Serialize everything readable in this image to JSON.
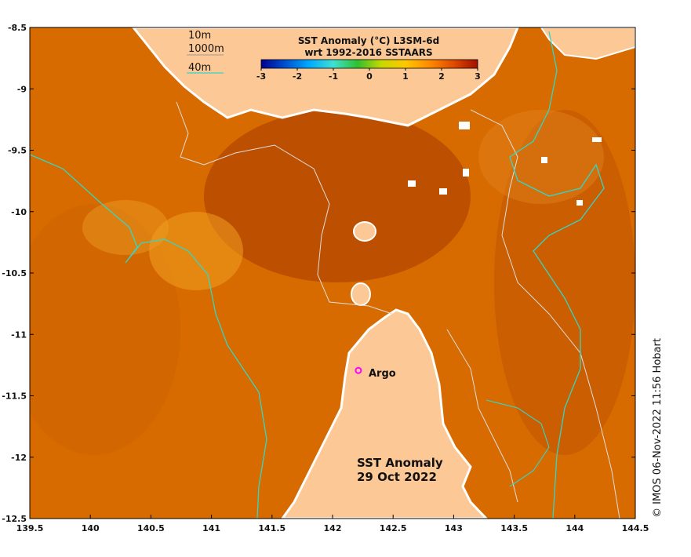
{
  "map": {
    "title_line1": "SST Anomaly (°C) L3SM-6d",
    "title_line2": "wrt 1992-2016 SSTAARS",
    "annotation_line1": "SST Anomaly",
    "annotation_line2": "29 Oct 2022",
    "credit": "© IMOS 06-Nov-2022 11:56 Hobart",
    "argo_label": "Argo",
    "argo_marker_color": "#ff00ff",
    "land_color": "#fcc996",
    "anomaly_color": "#d86b00",
    "contour_40m_color": "#33d6c6",
    "contour_10m_color": "#dddddd"
  },
  "legend": {
    "items": [
      {
        "label": "10m",
        "color": "#dddddd"
      },
      {
        "label": "1000m",
        "color": "#999999"
      },
      {
        "label": "40m",
        "color": "#33d6c6"
      }
    ]
  },
  "colorbar": {
    "ticks": [
      "-3",
      "-2",
      "-1",
      "0",
      "1",
      "2",
      "3"
    ],
    "min": -3,
    "max": 3,
    "colors": [
      "#00008c",
      "#0050d0",
      "#00aaff",
      "#40e0d0",
      "#30c030",
      "#c8d800",
      "#ffc800",
      "#ff8a00",
      "#e04a00",
      "#a01000"
    ]
  },
  "axes": {
    "x_ticks": [
      "139.5",
      "140",
      "140.5",
      "141",
      "141.5",
      "142",
      "142.5",
      "143",
      "143.5",
      "144",
      "144.5"
    ],
    "y_ticks": [
      "-8.5",
      "-9",
      "-9.5",
      "-10",
      "-10.5",
      "-11",
      "-11.5",
      "-12",
      "-12.5"
    ],
    "lon_range": [
      139.5,
      144.5
    ],
    "lat_range": [
      -12.5,
      -8.5
    ],
    "argo_position": {
      "lon": 142.2,
      "lat": -11.3
    }
  }
}
